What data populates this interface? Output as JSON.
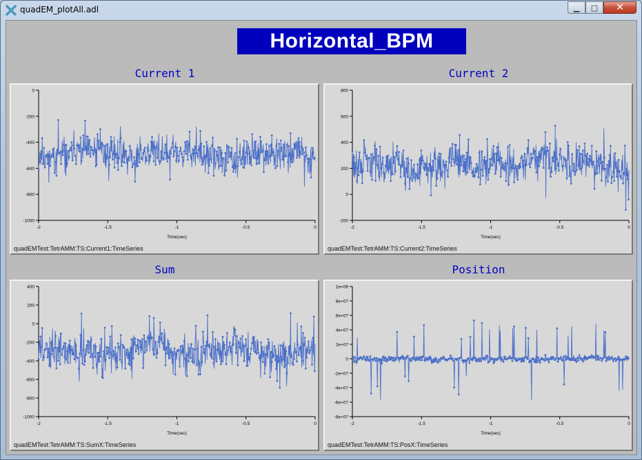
{
  "window": {
    "title": "quadEM_plotAll.adl"
  },
  "caption_buttons": {
    "minimize": "▁",
    "maximize": "□",
    "close": "✕"
  },
  "display_title": "Horizontal_BPM",
  "colors": {
    "title_bg": "#0000bd",
    "trace": "#4a6fc8",
    "plot_title": "#0000c0"
  },
  "plots": [
    {
      "title": "Current 1",
      "pv": "quadEMTest:TetrAMM:TS:Current1:TimeSeries",
      "chart_data": {
        "type": "line",
        "title": "Current 1",
        "xlabel": "Time(sec)",
        "ylabel": "",
        "xlim": [
          -2,
          0
        ],
        "ylim": [
          -1000,
          0
        ],
        "xticks": [
          -2,
          -1.5,
          -1,
          -0.5,
          0
        ],
        "xtick_labels": [
          "-2",
          "-1.5",
          "-1",
          "-0.5",
          "0"
        ],
        "yticks": [
          0,
          -200,
          -400,
          -600,
          -800,
          -1000
        ],
        "ytick_labels": [
          "0",
          "-200",
          "-400",
          "-600",
          "-800",
          "-1000"
        ],
        "series": {
          "mean": -500,
          "noise": 110,
          "spike": 180,
          "spike_prob": 0.06,
          "seed": 11
        }
      }
    },
    {
      "title": "Current 2",
      "pv": "quadEMTest:TetrAMM:TS:Current2:TimeSeries",
      "chart_data": {
        "type": "line",
        "title": "Current 2",
        "xlabel": "Time(sec)",
        "ylabel": "",
        "xlim": [
          -2,
          0
        ],
        "ylim": [
          -200,
          800
        ],
        "xticks": [
          -2,
          -1.5,
          -1,
          -0.5,
          0
        ],
        "xtick_labels": [
          "-2",
          "-1.5",
          "-1",
          "-0.5",
          "0"
        ],
        "yticks": [
          800,
          600,
          400,
          200,
          0,
          -200
        ],
        "ytick_labels": [
          "800",
          "600",
          "400",
          "200",
          "0",
          "-200"
        ],
        "series": {
          "mean": 230,
          "noise": 120,
          "spike": 200,
          "spike_prob": 0.06,
          "seed": 29
        }
      }
    },
    {
      "title": "Sum",
      "pv": "quadEMTest:TetrAMM:TS:SumX:TimeSeries",
      "chart_data": {
        "type": "line",
        "title": "Sum",
        "xlabel": "Time(sec)",
        "ylabel": "",
        "xlim": [
          -2,
          0
        ],
        "ylim": [
          -1000,
          400
        ],
        "xticks": [
          -2,
          -1.5,
          -1,
          -0.5,
          0
        ],
        "xtick_labels": [
          "-2",
          "-1.5",
          "-1",
          "-0.5",
          "0"
        ],
        "yticks": [
          400,
          200,
          0,
          -200,
          -400,
          -600,
          -800,
          -1000
        ],
        "ytick_labels": [
          "400",
          "200",
          "0",
          "-200",
          "-400",
          "-600",
          "-800",
          "-1000"
        ],
        "series": {
          "mean": -270,
          "noise": 160,
          "spike": 260,
          "spike_prob": 0.06,
          "seed": 47
        }
      }
    },
    {
      "title": "Position",
      "pv": "quadEMTest:TetrAMM:TS:PosX:TimeSeries",
      "chart_data": {
        "type": "line",
        "title": "Position",
        "xlabel": "Time(sec)",
        "ylabel": "",
        "xlim": [
          -2,
          0
        ],
        "ylim": [
          -80000000,
          100000000
        ],
        "xticks": [
          -2,
          -1.5,
          -1,
          -0.5,
          0
        ],
        "xtick_labels": [
          "-2",
          "-1.5",
          "-1",
          "-0.5",
          "0"
        ],
        "yticks": [
          100000000,
          80000000,
          60000000,
          40000000,
          20000000,
          0,
          -20000000,
          -40000000,
          -60000000,
          -80000000
        ],
        "ytick_labels": [
          "1e+08",
          "8e+07",
          "6e+07",
          "4e+07",
          "2e+07",
          "0",
          "-2e+07",
          "-4e+07",
          "-6e+07",
          "-8e+07"
        ],
        "series": {
          "mean": 0,
          "noise": 4000000,
          "spike": 50000000,
          "spike_prob": 0.05,
          "seed": 83
        }
      }
    }
  ]
}
